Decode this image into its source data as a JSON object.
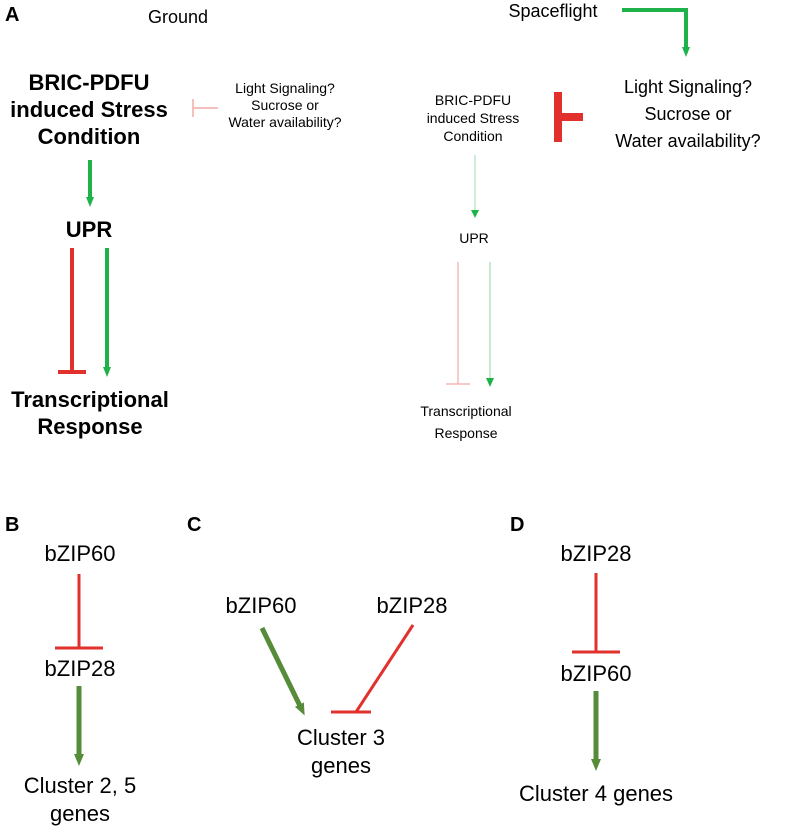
{
  "panel_labels": {
    "a": "A",
    "b": "B",
    "c": "C",
    "d": "D"
  },
  "panel_a": {
    "ground": {
      "title": "Ground",
      "stress_lines": [
        "BRIC-PDFU",
        "induced Stress",
        "Condition"
      ],
      "inhibitor_lines": [
        "Light Signaling?",
        "Sucrose or",
        "Water availability?"
      ],
      "upr": "UPR",
      "response_lines": [
        "Transcriptional",
        "Response"
      ]
    },
    "spaceflight": {
      "title": "Spaceflight",
      "inhibitor_lines": [
        "Light Signaling?",
        "Sucrose or",
        "Water availability?"
      ],
      "stress_lines": [
        "BRIC-PDFU",
        "induced Stress",
        "Condition"
      ],
      "upr": "UPR",
      "response_lines": [
        "Transcriptional",
        "Response"
      ]
    }
  },
  "panel_b": {
    "top": "bZIP60",
    "middle": "bZIP28",
    "target_lines": [
      "Cluster 2, 5",
      "genes"
    ]
  },
  "panel_c": {
    "left": "bZIP60",
    "right": "bZIP28",
    "target_lines": [
      "Cluster 3",
      "genes"
    ]
  },
  "panel_d": {
    "top": "bZIP28",
    "middle": "bZIP60",
    "target": "Cluster 4 genes"
  },
  "colors": {
    "activation": "#20b24a",
    "activation_dark": "#568c39",
    "inhibition": "#e2302c",
    "inhibition_faint": "#f2aaa7",
    "activation_faint": "#9ddbb0"
  }
}
